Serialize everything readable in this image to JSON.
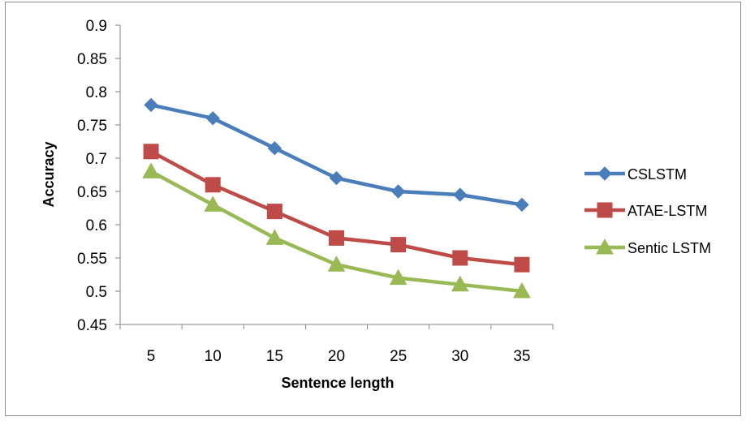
{
  "chart_data": {
    "type": "line",
    "x": [
      5,
      10,
      15,
      20,
      25,
      30,
      35
    ],
    "xlabel": "Sentence length",
    "ylabel": "Accuracy",
    "ylim": [
      0.45,
      0.9
    ],
    "yticks": [
      "0.45",
      "0.5",
      "0.55",
      "0.6",
      "0.65",
      "0.7",
      "0.75",
      "0.8",
      "0.85",
      "0.9"
    ],
    "xticks": [
      "5",
      "10",
      "15",
      "20",
      "25",
      "30",
      "35"
    ],
    "grid": false,
    "legend_position": "right",
    "series": [
      {
        "name": "CSLSTM",
        "values": [
          0.78,
          0.76,
          0.715,
          0.67,
          0.65,
          0.645,
          0.63
        ],
        "color": "#4a7ebb",
        "marker": "diamond"
      },
      {
        "name": "ATAE-LSTM",
        "values": [
          0.71,
          0.66,
          0.62,
          0.58,
          0.57,
          0.55,
          0.54
        ],
        "color": "#be4b48",
        "marker": "square"
      },
      {
        "name": "Sentic LSTM",
        "values": [
          0.68,
          0.63,
          0.58,
          0.54,
          0.52,
          0.51,
          0.5
        ],
        "color": "#98b954",
        "marker": "triangle"
      }
    ]
  }
}
